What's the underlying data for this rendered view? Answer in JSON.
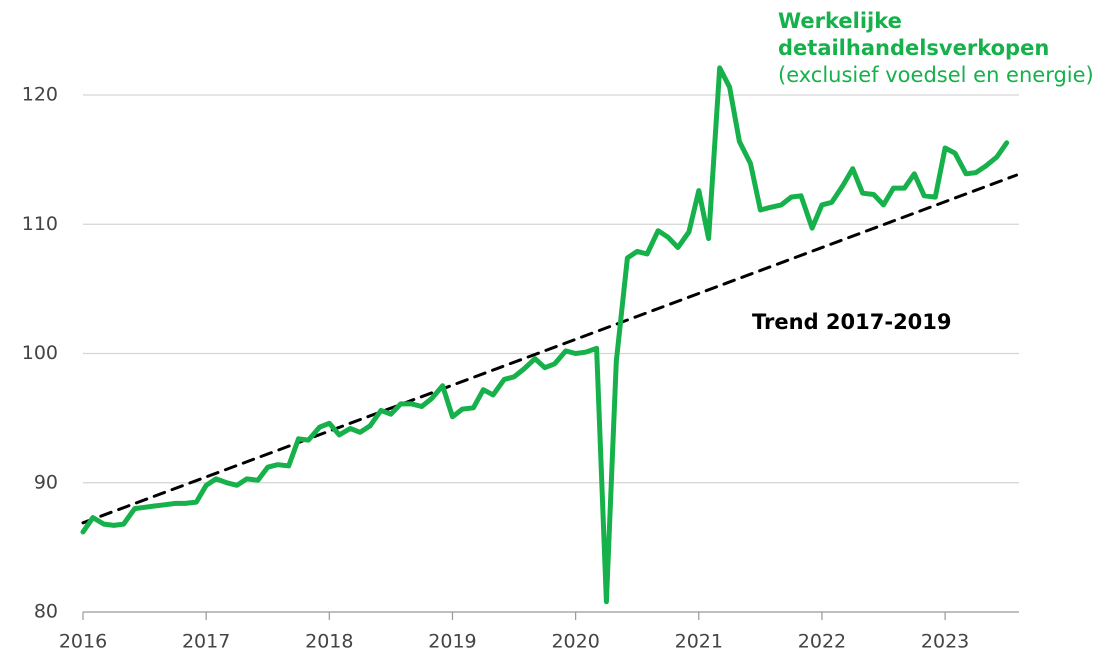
{
  "chart_data": {
    "type": "line",
    "xlim": [
      2016,
      2023.6
    ],
    "xticks": [
      2016,
      2017,
      2018,
      2019,
      2020,
      2021,
      2022,
      2023
    ],
    "ylim": [
      80,
      120
    ],
    "yticks": [
      80,
      90,
      100,
      110,
      120
    ],
    "grid": true,
    "series": [
      {
        "name": "Werkelijke detailhandelsverkopen",
        "note": "(exclusief voedsel en energie)",
        "color": "#16b14b",
        "dash": false,
        "x": [
          2016.0,
          2016.08,
          2016.17,
          2016.25,
          2016.33,
          2016.42,
          2016.5,
          2016.58,
          2016.67,
          2016.75,
          2016.83,
          2016.92,
          2017.0,
          2017.08,
          2017.17,
          2017.25,
          2017.33,
          2017.42,
          2017.5,
          2017.58,
          2017.67,
          2017.75,
          2017.83,
          2017.92,
          2018.0,
          2018.08,
          2018.17,
          2018.25,
          2018.33,
          2018.42,
          2018.5,
          2018.58,
          2018.67,
          2018.75,
          2018.83,
          2018.92,
          2019.0,
          2019.08,
          2019.17,
          2019.25,
          2019.33,
          2019.42,
          2019.5,
          2019.58,
          2019.67,
          2019.75,
          2019.83,
          2019.92,
          2020.0,
          2020.08,
          2020.17,
          2020.25,
          2020.33,
          2020.42,
          2020.5,
          2020.58,
          2020.67,
          2020.75,
          2020.83,
          2020.92,
          2021.0,
          2021.08,
          2021.17,
          2021.25,
          2021.33,
          2021.42,
          2021.5,
          2021.58,
          2021.67,
          2021.75,
          2021.83,
          2021.92,
          2022.0,
          2022.08,
          2022.17,
          2022.25,
          2022.33,
          2022.42,
          2022.5,
          2022.58,
          2022.67,
          2022.75,
          2022.83,
          2022.92,
          2023.0,
          2023.08,
          2023.17,
          2023.25,
          2023.33,
          2023.42,
          2023.5
        ],
        "values": [
          86.2,
          87.3,
          86.8,
          86.7,
          86.8,
          88.0,
          88.1,
          88.2,
          88.3,
          88.4,
          88.4,
          88.5,
          89.8,
          90.3,
          90.0,
          89.8,
          90.3,
          90.2,
          91.2,
          91.4,
          91.3,
          93.4,
          93.3,
          94.3,
          94.6,
          93.7,
          94.2,
          93.9,
          94.4,
          95.6,
          95.3,
          96.1,
          96.1,
          95.9,
          96.5,
          97.5,
          95.1,
          95.7,
          95.8,
          97.2,
          96.8,
          98.0,
          98.2,
          98.8,
          99.6,
          98.9,
          99.2,
          100.2,
          100.0,
          100.1,
          100.4,
          80.8,
          99.4,
          107.4,
          107.9,
          107.7,
          109.5,
          109.0,
          108.2,
          109.4,
          112.6,
          108.9,
          122.1,
          120.6,
          116.4,
          114.7,
          111.1,
          111.3,
          111.5,
          112.1,
          112.2,
          109.7,
          111.5,
          111.7,
          113.0,
          114.3,
          112.4,
          112.3,
          111.5,
          112.8,
          112.8,
          113.9,
          112.2,
          112.1,
          115.9,
          115.5,
          113.9,
          114.0,
          114.5,
          115.2,
          116.3
        ]
      },
      {
        "name": "Trend 2017-2019",
        "color": "#000000",
        "dash": true,
        "x": [
          2016.0,
          2023.58
        ],
        "values": [
          86.9,
          113.8
        ]
      }
    ]
  }
}
